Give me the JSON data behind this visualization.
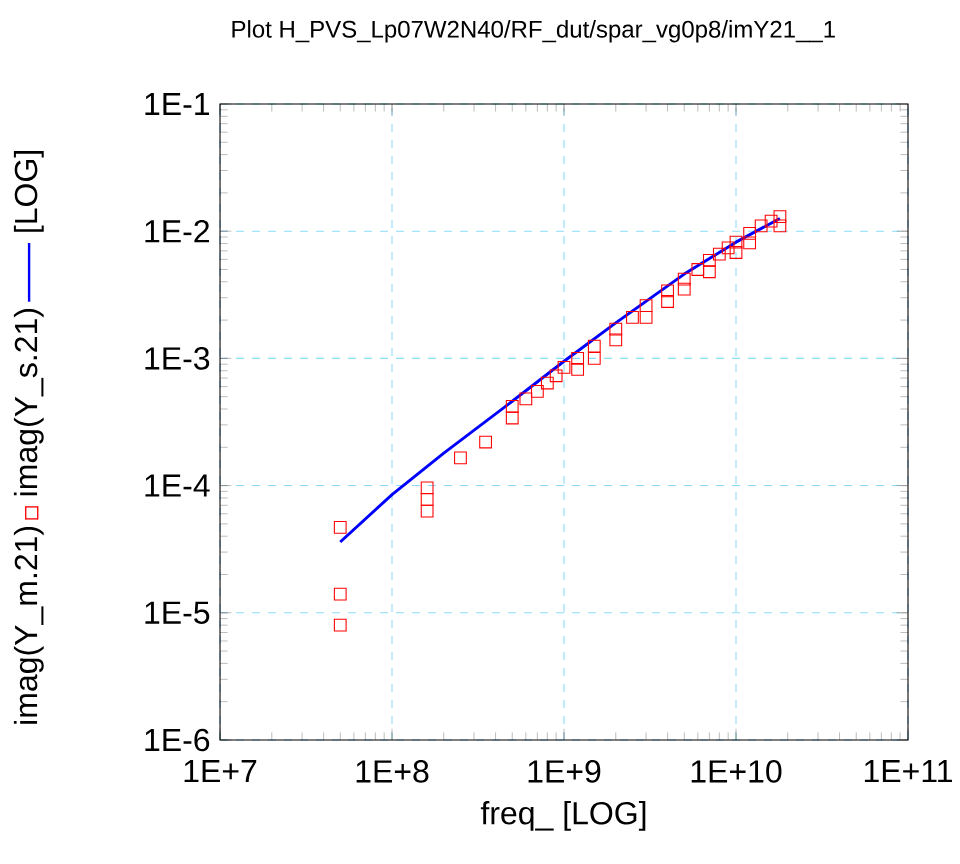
{
  "chart_data": {
    "type": "scatter",
    "title": "Plot H_PVS_Lp07W2N40/RF_dut/spar_vg0p8/imY21__1",
    "xlabel": "freq_  [LOG]",
    "ylabel": "[LOG]",
    "log": "xy",
    "grid": true,
    "legend": "left",
    "marker": "square",
    "xlim": [
      10000000.0,
      100000000000.0
    ],
    "ylim": [
      1e-06,
      0.1
    ],
    "xticks": [
      {
        "value": 10000000.0,
        "label": "1E+7"
      },
      {
        "value": 100000000.0,
        "label": "1E+8"
      },
      {
        "value": 1000000000.0,
        "label": "1E+9"
      },
      {
        "value": 10000000000.0,
        "label": "1E+10"
      },
      {
        "value": 100000000000.0,
        "label": "1E+11"
      }
    ],
    "yticks": [
      {
        "value": 1e-06,
        "label": "1E-6"
      },
      {
        "value": 1e-05,
        "label": "1E-5"
      },
      {
        "value": 0.0001,
        "label": "1E-4"
      },
      {
        "value": 0.001,
        "label": "1E-3"
      },
      {
        "value": 0.01,
        "label": "1E-2"
      },
      {
        "value": 0.1,
        "label": "1E-1"
      }
    ],
    "series": [
      {
        "name": "imag(Y_m.21)",
        "color": "#ff0000",
        "x": [
          50000000.0,
          50000000.0,
          50000000.0,
          160000000.0,
          160000000.0,
          160000000.0,
          250000000.0,
          350000000.0,
          500000000.0,
          500000000.0,
          600000000.0,
          700000000.0,
          800000000.0,
          900000000.0,
          1000000000.0,
          1200000000.0,
          1200000000.0,
          1500000000.0,
          1500000000.0,
          2000000000.0,
          2000000000.0,
          2500000000.0,
          3000000000.0,
          3000000000.0,
          4000000000.0,
          4000000000.0,
          5000000000.0,
          5000000000.0,
          6000000000.0,
          7000000000.0,
          7000000000.0,
          8000000000.0,
          9000000000.0,
          10000000000.0,
          10000000000.0,
          12000000000.0,
          12000000000.0,
          14000000000.0,
          16000000000.0,
          18000000000.0,
          18000000000.0
        ],
        "values": [
          4.7e-05,
          1.4e-05,
          8e-06,
          9.6e-05,
          7.8e-05,
          6.3e-05,
          0.000165,
          0.00022,
          0.00042,
          0.00034,
          0.00048,
          0.00055,
          0.00064,
          0.00073,
          0.00085,
          0.001,
          0.00082,
          0.00125,
          0.001,
          0.0017,
          0.0014,
          0.0021,
          0.0026,
          0.0021,
          0.0034,
          0.0028,
          0.0042,
          0.0035,
          0.005,
          0.0059,
          0.0048,
          0.0066,
          0.0074,
          0.0082,
          0.0068,
          0.0096,
          0.0081,
          0.011,
          0.012,
          0.013,
          0.011
        ]
      },
      {
        "name": "imag(Y_s.21)",
        "type": "line",
        "color": "#0000ff",
        "marker": "none",
        "line_style": "solid",
        "x": [
          50000000.0,
          100000000.0,
          200000000.0,
          500000000.0,
          1000000000.0,
          2000000000.0,
          5000000000.0,
          10000000000.0,
          18000000000.0
        ],
        "values": [
          3.6e-05,
          8.5e-05,
          0.00018,
          0.00046,
          0.00095,
          0.0019,
          0.0046,
          0.0082,
          0.0126
        ]
      }
    ]
  }
}
